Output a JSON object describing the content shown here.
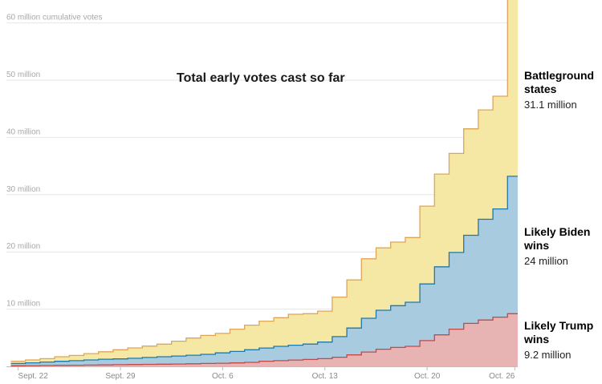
{
  "chart_data": {
    "type": "area",
    "stacked": true,
    "title": "Total early votes cast so far",
    "y_axis": {
      "unit_label": "60 million cumulative votes",
      "ticks": [
        {
          "value": 10,
          "label": "10 million"
        },
        {
          "value": 20,
          "label": "20 million"
        },
        {
          "value": 30,
          "label": "30 million"
        },
        {
          "value": 40,
          "label": "40 million"
        },
        {
          "value": 50,
          "label": "50 million"
        },
        {
          "value": 60,
          "label": "60 million cumulative votes"
        }
      ],
      "ylim": [
        0,
        64
      ]
    },
    "x_axis": {
      "ticks": [
        {
          "day": 0,
          "label": "Sept. 22"
        },
        {
          "day": 7,
          "label": "Sept. 29"
        },
        {
          "day": 14,
          "label": "Oct. 6"
        },
        {
          "day": 21,
          "label": "Oct. 13"
        },
        {
          "day": 28,
          "label": "Oct. 20"
        },
        {
          "day": 34,
          "label": "Oct. 26"
        }
      ],
      "xlim": [
        -0.8,
        34.2
      ]
    },
    "grid": true,
    "step": true,
    "x": [
      "Sept. 22",
      "Sept. 23",
      "Sept. 24",
      "Sept. 25",
      "Sept. 26",
      "Sept. 27",
      "Sept. 28",
      "Sept. 29",
      "Sept. 30",
      "Oct. 1",
      "Oct. 2",
      "Oct. 3",
      "Oct. 4",
      "Oct. 5",
      "Oct. 6",
      "Oct. 7",
      "Oct. 8",
      "Oct. 9",
      "Oct. 10",
      "Oct. 11",
      "Oct. 12",
      "Oct. 13",
      "Oct. 14",
      "Oct. 15",
      "Oct. 16",
      "Oct. 17",
      "Oct. 18",
      "Oct. 19",
      "Oct. 20",
      "Oct. 21",
      "Oct. 22",
      "Oct. 23",
      "Oct. 24",
      "Oct. 25",
      "Oct. 26"
    ],
    "series": [
      {
        "name": "Likely Trump wins",
        "value_label": "9.2 million",
        "color": "#c0494a",
        "fill": "#e7b4b3",
        "values": [
          0.1,
          0.12,
          0.15,
          0.18,
          0.2,
          0.22,
          0.25,
          0.3,
          0.32,
          0.35,
          0.38,
          0.4,
          0.45,
          0.5,
          0.55,
          0.6,
          0.7,
          0.9,
          1.0,
          1.1,
          1.2,
          1.35,
          1.6,
          2.0,
          2.5,
          3.0,
          3.3,
          3.5,
          4.5,
          5.5,
          6.5,
          7.5,
          8.1,
          8.6,
          9.2
        ]
      },
      {
        "name": "Likely Biden wins",
        "value_label": "24 million",
        "color": "#1f78a8",
        "fill": "#a8cbe0",
        "values": [
          0.4,
          0.5,
          0.6,
          0.7,
          0.8,
          0.9,
          1.0,
          1.0,
          1.1,
          1.2,
          1.3,
          1.4,
          1.5,
          1.6,
          1.8,
          2.0,
          2.2,
          2.3,
          2.5,
          2.6,
          2.7,
          2.9,
          3.6,
          4.7,
          5.9,
          6.8,
          7.3,
          7.7,
          9.9,
          11.9,
          13.4,
          15.4,
          17.6,
          18.9,
          24.0
        ]
      },
      {
        "name": "Battleground states",
        "value_label": "31.1 million",
        "color": "#e0a458",
        "fill": "#f5e8a5",
        "values": [
          0.4,
          0.5,
          0.6,
          0.8,
          0.9,
          1.1,
          1.3,
          1.6,
          1.8,
          2.0,
          2.2,
          2.6,
          3.0,
          3.3,
          3.4,
          3.9,
          4.3,
          4.7,
          5.0,
          5.4,
          5.3,
          5.4,
          6.9,
          8.4,
          10.4,
          10.9,
          11.1,
          11.3,
          13.6,
          16.2,
          17.3,
          18.6,
          19.1,
          19.7,
          31.1
        ]
      }
    ]
  }
}
